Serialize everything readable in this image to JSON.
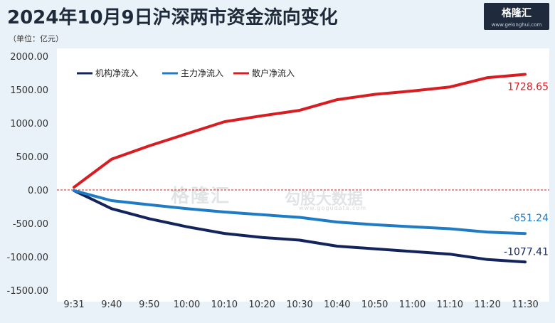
{
  "chart_data": {
    "type": "line",
    "title": "2024年10月9日沪深两市资金流向变化",
    "unit_label": "（单位：亿元）",
    "categories": [
      "9:31",
      "9:40",
      "9:50",
      "10:00",
      "10:10",
      "10:20",
      "10:30",
      "10:40",
      "10:50",
      "11:00",
      "11:10",
      "11:20",
      "11:30"
    ],
    "ylim": [
      -1500,
      2000
    ],
    "yticks": [
      2000,
      1500,
      1000,
      500,
      0,
      -500,
      -1000,
      -1500
    ],
    "ytick_labels": [
      "2000.00",
      "1500.00",
      "1000.00",
      "500.00",
      "0.00",
      "-500.00",
      "-1000.00",
      "-1500.00"
    ],
    "zero_line": "dashed red",
    "legend_position": "top-left",
    "series": [
      {
        "name": "机构净流入",
        "color": "#13245c",
        "values": [
          -10,
          -280,
          -430,
          -550,
          -650,
          -710,
          -750,
          -840,
          -880,
          -920,
          -960,
          -1040,
          -1077.41
        ],
        "end_label": "-1077.41"
      },
      {
        "name": "主力净流入",
        "color": "#1f7cc4",
        "values": [
          -10,
          -160,
          -220,
          -280,
          -330,
          -370,
          -410,
          -480,
          -520,
          -550,
          -580,
          -630,
          -651.24
        ],
        "end_label": "-651.24"
      },
      {
        "name": "散户净流入",
        "color": "#d81d22",
        "values": [
          40,
          460,
          660,
          840,
          1020,
          1110,
          1190,
          1350,
          1430,
          1480,
          1540,
          1680,
          1728.65
        ],
        "end_label": "1728.65"
      }
    ]
  },
  "brand": {
    "name": "格隆汇",
    "url": "www.gelonghui.com"
  },
  "watermark": {
    "left": "格隆汇",
    "right": "勾股大数据",
    "url": "www.gogudata.com"
  }
}
